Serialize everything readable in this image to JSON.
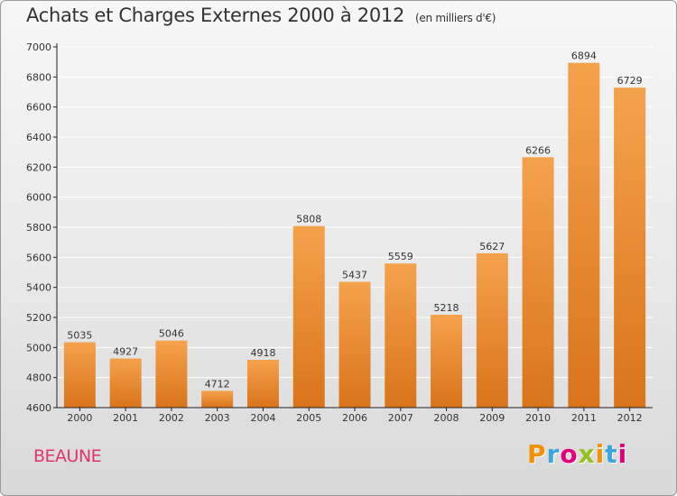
{
  "header": {
    "title": "Achats et Charges Externes 2000 à 2012",
    "subtitle": "(en milliers d'€)"
  },
  "footer": {
    "commune": "BEAUNE",
    "brand": "Proxiti"
  },
  "colors": {
    "bar_light": "#f5a24d",
    "bar_dark": "#d9741a",
    "grid": "#ffffff",
    "axis": "#222222",
    "commune": "#e0356b",
    "brand_letters": [
      "#f39200",
      "#3aa6dd",
      "#e2007a",
      "#95c11f",
      "#f39200",
      "#3aa6dd",
      "#e2007a"
    ]
  },
  "chart_data": {
    "type": "bar",
    "title": "Achats et Charges Externes 2000 à 2012",
    "subtitle": "(en milliers d'€)",
    "categories": [
      "2000",
      "2001",
      "2002",
      "2003",
      "2004",
      "2005",
      "2006",
      "2007",
      "2008",
      "2009",
      "2010",
      "2011",
      "2012"
    ],
    "values": [
      5035,
      4927,
      5046,
      4712,
      4918,
      5808,
      5437,
      5559,
      5218,
      5627,
      6266,
      6894,
      6729
    ],
    "ylim": [
      4600,
      7000
    ],
    "yticks": [
      4600,
      4800,
      5000,
      5200,
      5400,
      5600,
      5800,
      6000,
      6200,
      6400,
      6600,
      6800,
      7000
    ],
    "grid": true,
    "data_labels": true
  }
}
